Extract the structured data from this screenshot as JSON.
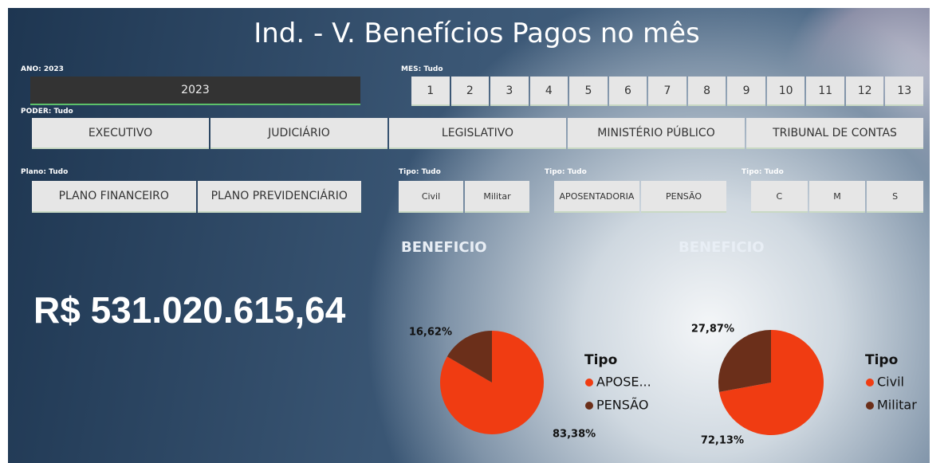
{
  "header": {
    "title": "Ind. - V. Benefícios Pagos no mês"
  },
  "filters": [
    {
      "label": "ANO: 2023",
      "options": [
        "2023"
      ]
    },
    {
      "label": "MES: Tudo",
      "options": [
        "1",
        "2",
        "3",
        "4",
        "5",
        "6",
        "7",
        "8",
        "9",
        "10",
        "11",
        "12",
        "13"
      ]
    },
    {
      "label": "PODER: Tudo",
      "options": [
        "EXECUTIVO",
        "JUDICIÁRIO",
        "LEGISLATIVO",
        "MINISTÉRIO PÚBLICO",
        "TRIBUNAL DE CONTAS"
      ]
    },
    {
      "label": "Plano: Tudo",
      "options": [
        "PLANO FINANCEIRO",
        "PLANO PREVIDENCIÁRIO"
      ]
    },
    {
      "label": "Tipo: Tudo",
      "options": [
        "Civil",
        "Militar"
      ]
    },
    {
      "label": "Tipo: Tudo",
      "options": [
        "APOSENTADORIA",
        "PENSÃO"
      ]
    },
    {
      "label": "Tipo: Tudo",
      "options": [
        "C",
        "M",
        "S"
      ]
    }
  ],
  "kpi": {
    "value": "R$ 531.020.615,64"
  },
  "chart_data": [
    {
      "type": "pie",
      "title": "BENEFICIO",
      "legend_title": "Tipo",
      "categories": [
        "APOSE...",
        "PENSÃO"
      ],
      "values": [
        83.38,
        16.62
      ],
      "value_labels": [
        "83,38%",
        "16,62%"
      ],
      "colors": [
        "#f03c12",
        "#6b2f1a"
      ]
    },
    {
      "type": "pie",
      "title": "BENEFICIO",
      "legend_title": "Tipo",
      "categories": [
        "Civil",
        "Militar"
      ],
      "values": [
        72.13,
        27.87
      ],
      "value_labels": [
        "72,13%",
        "27,87%"
      ],
      "colors": [
        "#f03c12",
        "#6b2f1a"
      ]
    }
  ]
}
